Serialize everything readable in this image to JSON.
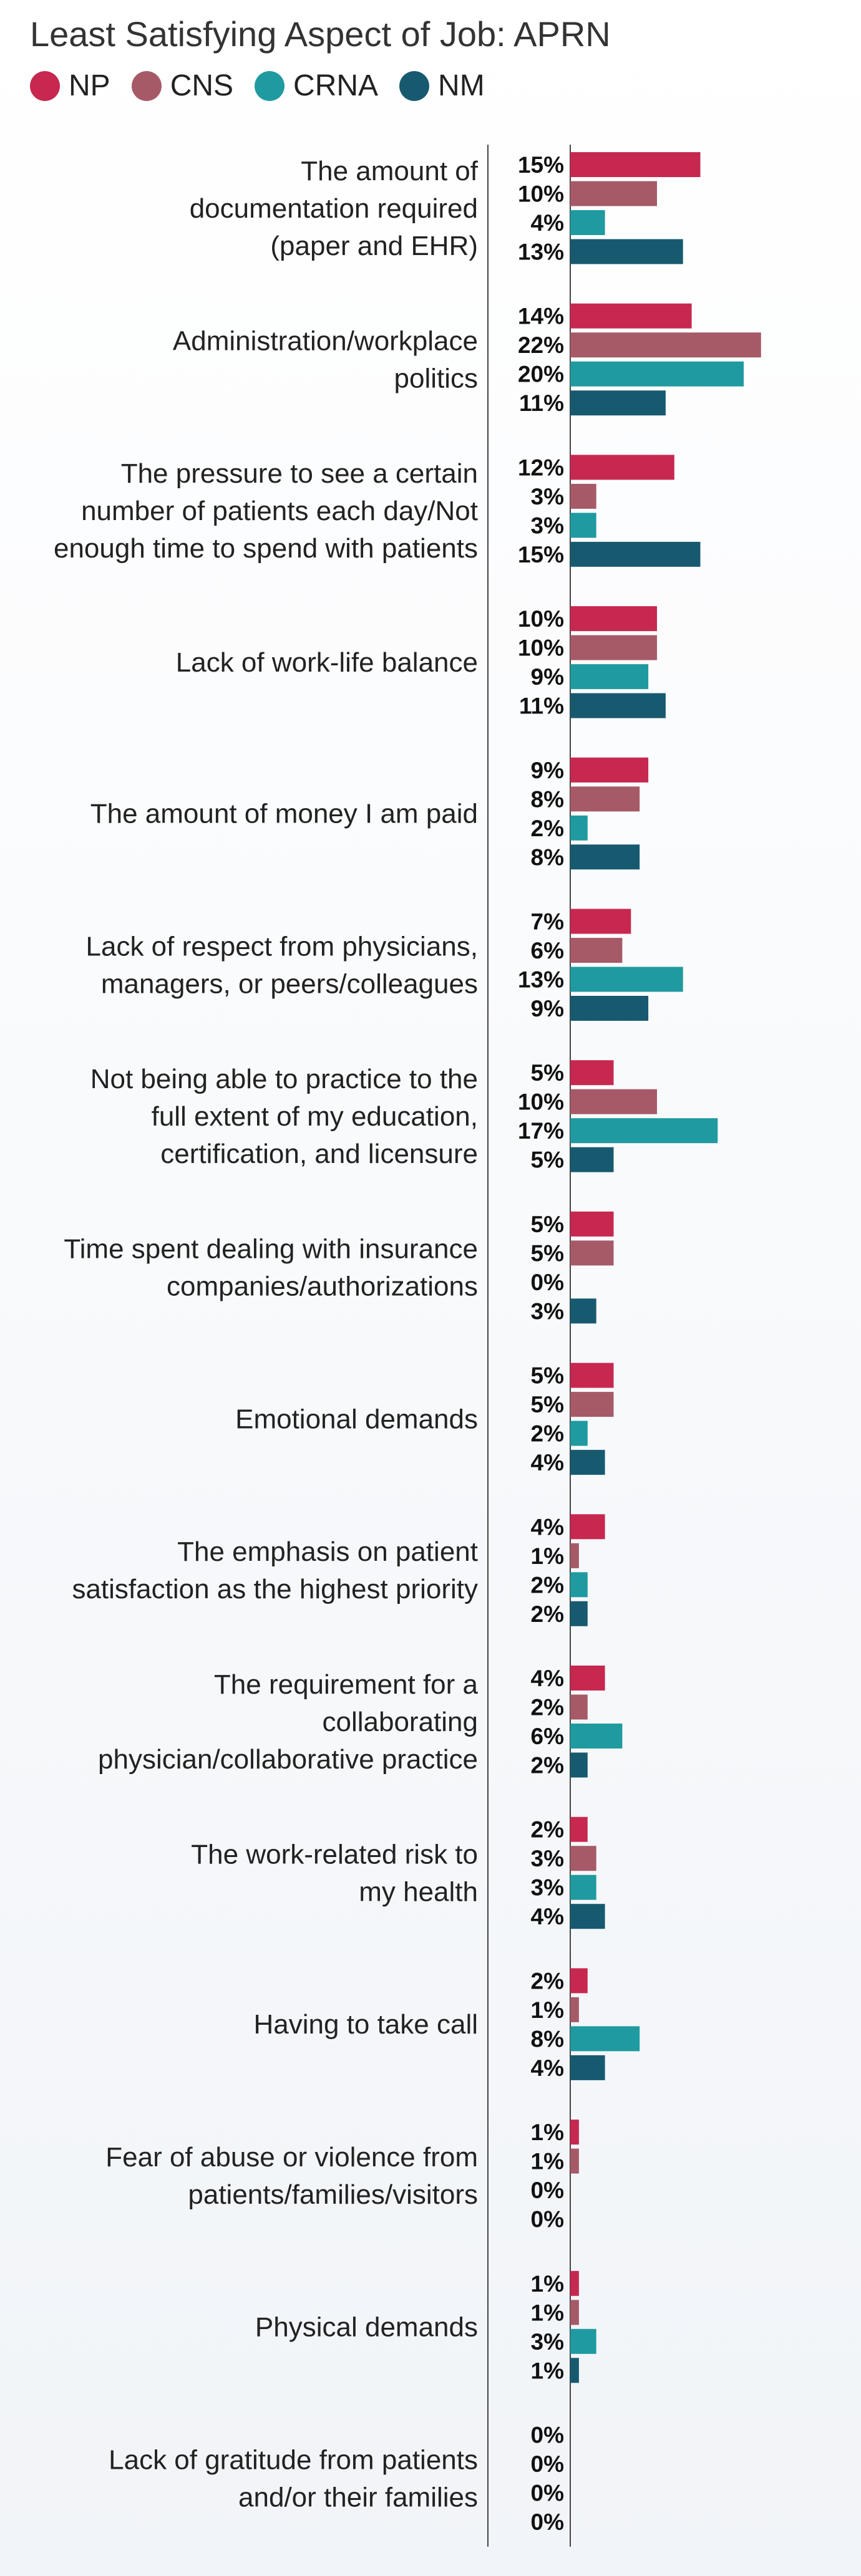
{
  "chart_data": {
    "type": "bar",
    "orientation": "horizontal",
    "title": "Least Satisfying Aspect of Job: APRN",
    "legend_position": "top-left",
    "grid": false,
    "xlim": [
      0,
      22
    ],
    "series": [
      {
        "name": "NP",
        "color": "#c7284f",
        "values": [
          15,
          14,
          12,
          10,
          9,
          7,
          5,
          5,
          5,
          4,
          4,
          2,
          2,
          1,
          1,
          0
        ]
      },
      {
        "name": "CNS",
        "color": "#a65a67",
        "values": [
          10,
          22,
          3,
          10,
          8,
          6,
          10,
          5,
          5,
          1,
          2,
          3,
          1,
          1,
          1,
          0
        ]
      },
      {
        "name": "CRNA",
        "color": "#1f9aa0",
        "values": [
          4,
          20,
          3,
          9,
          2,
          13,
          17,
          0,
          2,
          2,
          6,
          3,
          8,
          0,
          3,
          0
        ]
      },
      {
        "name": "NM",
        "color": "#175a70",
        "values": [
          13,
          11,
          15,
          11,
          8,
          9,
          5,
          3,
          4,
          2,
          2,
          4,
          4,
          0,
          1,
          0
        ]
      }
    ],
    "categories": [
      [
        "The amount of",
        "documentation required",
        "(paper and EHR)"
      ],
      [
        "Administration/workplace",
        "politics"
      ],
      [
        "The pressure to see a certain",
        "number of patients each day/Not",
        "enough time to spend with patients"
      ],
      [
        "Lack of work-life balance"
      ],
      [
        "The amount of money I am paid"
      ],
      [
        "Lack of respect from physicians,",
        "managers, or peers/colleagues"
      ],
      [
        "Not being able to practice to the",
        "full extent of my education,",
        "certification, and licensure"
      ],
      [
        "Time spent dealing with insurance",
        "companies/authorizations"
      ],
      [
        "Emotional demands"
      ],
      [
        "The emphasis on patient",
        "satisfaction as the highest priority"
      ],
      [
        "The requirement for a",
        "collaborating",
        "physician/collaborative practice"
      ],
      [
        "The work-related risk to",
        "my health"
      ],
      [
        "Having to take call"
      ],
      [
        "Fear of abuse or violence from",
        "patients/families/visitors"
      ],
      [
        "Physical demands"
      ],
      [
        "Lack of gratitude from patients",
        "and/or their families"
      ]
    ],
    "value_suffix": "%"
  }
}
